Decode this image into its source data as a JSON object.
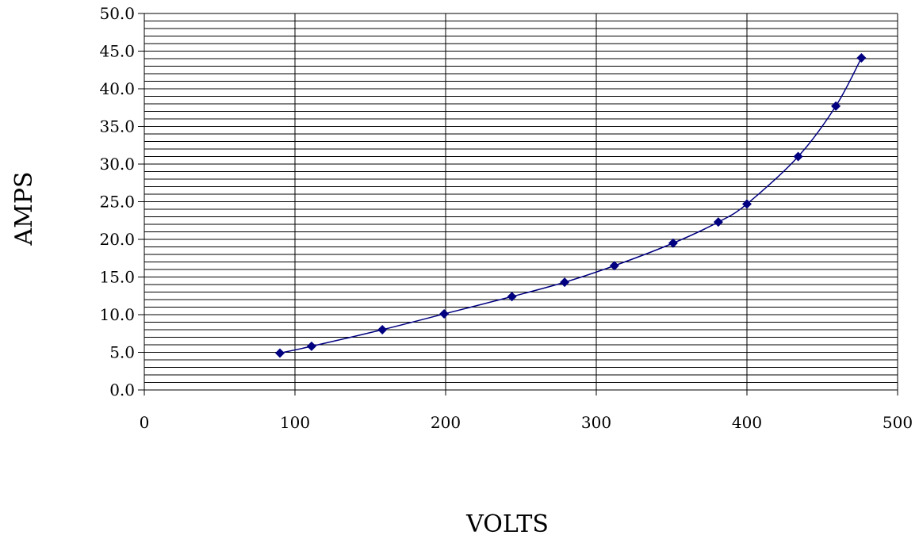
{
  "chart_data": {
    "type": "scatter",
    "title": "",
    "xlabel": "VOLTS",
    "ylabel": "AMPS",
    "xlim": [
      0,
      500
    ],
    "ylim": [
      0,
      50
    ],
    "x_ticks": [
      "0",
      "100",
      "200",
      "300",
      "400",
      "500"
    ],
    "y_ticks": [
      "0.0",
      "5.0",
      "10.0",
      "15.0",
      "20.0",
      "25.0",
      "30.0",
      "35.0",
      "40.0",
      "45.0",
      "50.0"
    ],
    "grid": true,
    "smooth_line": true,
    "series": [
      {
        "x": [
          90,
          111,
          158,
          199,
          244,
          279,
          312,
          351,
          381,
          400,
          434,
          459,
          476
        ],
        "y": [
          4.9,
          5.8,
          8.0,
          10.1,
          12.4,
          14.3,
          16.5,
          19.5,
          22.3,
          24.7,
          31.0,
          37.7,
          44.1
        ]
      }
    ],
    "colors": {
      "line": "#000080",
      "marker": "#000080",
      "grid": "#000000",
      "background": "#ffffff"
    }
  }
}
